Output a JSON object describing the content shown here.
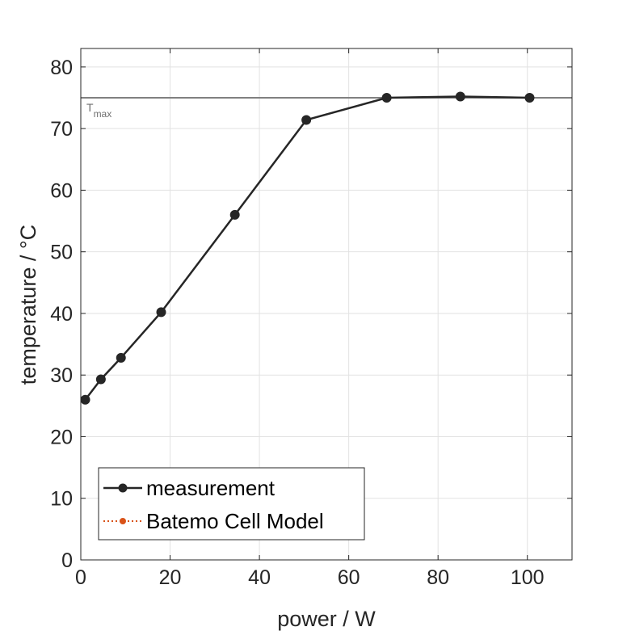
{
  "chart_data": {
    "type": "line",
    "xlabel": "power / W",
    "ylabel": "temperature / °C",
    "xlim": [
      0,
      110
    ],
    "ylim": [
      0,
      83
    ],
    "xticks": [
      0,
      20,
      40,
      60,
      80,
      100
    ],
    "yticks": [
      0,
      10,
      20,
      30,
      40,
      50,
      60,
      70,
      80
    ],
    "grid": true,
    "legend_position": "bottom-left",
    "series": [
      {
        "name": "measurement",
        "color": "#262626",
        "style": "solid",
        "marker": "circle",
        "x": [
          1,
          4.5,
          9,
          18,
          34.5,
          50.5,
          68.5,
          85,
          100.5
        ],
        "y": [
          26,
          29.3,
          32.8,
          40.2,
          56,
          71.4,
          75,
          75.2,
          75
        ]
      },
      {
        "name": "Batemo Cell Model",
        "color": "#D95319",
        "style": "dotted",
        "marker": "circle",
        "x": [],
        "y": []
      }
    ],
    "reference_line": {
      "y": 75,
      "color": "#808080",
      "label_main": "T",
      "label_sub": "max"
    }
  }
}
